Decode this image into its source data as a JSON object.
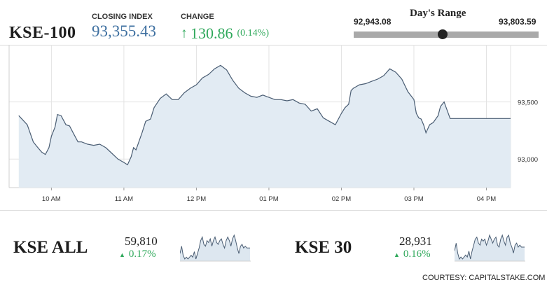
{
  "header": {
    "index_name": "KSE-100",
    "closing_label": "CLOSING INDEX",
    "closing_value": "93,355.43",
    "change_label": "CHANGE",
    "change_arrow": "↑",
    "change_value": "130.86",
    "change_pct": "(0.14%)"
  },
  "range": {
    "title": "Day's Range",
    "low": "92,943.08",
    "high": "93,803.59",
    "low_num": 92943.08,
    "high_num": 93803.59,
    "current_num": 93355.43
  },
  "chart_data": [
    {
      "type": "area",
      "title": "",
      "xlabel": "",
      "ylabel": "",
      "x_ticks": [
        "10 AM",
        "11 AM",
        "12 PM",
        "01 PM",
        "02 PM",
        "03 PM",
        "04 PM"
      ],
      "y_ticks": [
        "93,500",
        "93,000"
      ],
      "ylim": [
        92750,
        94000
      ],
      "grid": true,
      "colors": {
        "line": "#4a5d73",
        "fill": "#e2ebf3",
        "grid": "#e3e3e3"
      },
      "x": [
        "09:33",
        "09:40",
        "09:45",
        "09:48",
        "09:52",
        "09:55",
        "09:58",
        "10:00",
        "10:03",
        "10:05",
        "10:08",
        "10:12",
        "10:15",
        "10:18",
        "10:22",
        "10:25",
        "10:30",
        "10:35",
        "10:40",
        "10:45",
        "10:50",
        "10:55",
        "11:00",
        "11:03",
        "11:06",
        "11:08",
        "11:10",
        "11:12",
        "11:15",
        "11:18",
        "11:22",
        "11:25",
        "11:30",
        "11:35",
        "11:40",
        "11:45",
        "11:50",
        "11:55",
        "12:00",
        "12:05",
        "12:10",
        "12:15",
        "12:20",
        "12:25",
        "12:30",
        "12:35",
        "12:40",
        "12:45",
        "12:50",
        "12:55",
        "13:00",
        "13:05",
        "13:10",
        "13:15",
        "13:20",
        "13:25",
        "13:30",
        "13:35",
        "13:40",
        "13:45",
        "13:50",
        "13:55",
        "14:00",
        "14:03",
        "14:06",
        "14:08",
        "14:10",
        "14:15",
        "14:20",
        "14:25",
        "14:30",
        "14:35",
        "14:40",
        "14:45",
        "14:50",
        "14:55",
        "15:00",
        "15:02",
        "15:04",
        "15:06",
        "15:08",
        "15:10",
        "15:13",
        "15:16",
        "15:20",
        "15:22",
        "15:25",
        "15:30",
        "15:35",
        "15:45",
        "16:00",
        "16:15",
        "16:20"
      ],
      "series": [
        {
          "values": [
            93380,
            93300,
            93150,
            93110,
            93060,
            93040,
            93100,
            93200,
            93280,
            93390,
            93380,
            93300,
            93290,
            93230,
            93150,
            93150,
            93130,
            93120,
            93130,
            93100,
            93050,
            93000,
            92970,
            92950,
            93020,
            93100,
            93080,
            93140,
            93230,
            93330,
            93350,
            93450,
            93530,
            93570,
            93520,
            93520,
            93580,
            93620,
            93650,
            93710,
            93740,
            93790,
            93820,
            93780,
            93690,
            93620,
            93580,
            93550,
            93540,
            93560,
            93540,
            93520,
            93520,
            93510,
            93520,
            93490,
            93480,
            93420,
            93440,
            93360,
            93330,
            93300,
            93400,
            93450,
            93480,
            93600,
            93620,
            93650,
            93660,
            93680,
            93700,
            93730,
            93790,
            93760,
            93700,
            93590,
            93520,
            93400,
            93360,
            93350,
            93300,
            93230,
            93300,
            93320,
            93380,
            93460,
            93500,
            93355,
            93355,
            93355,
            93355,
            93355,
            93355
          ]
        }
      ]
    },
    {
      "type": "area",
      "title": "KSE ALL",
      "value_text": "59,810",
      "change_text": "0.17%",
      "series": [
        {
          "values": [
            5,
            9,
            4,
            2,
            3,
            2,
            3,
            4,
            3,
            6,
            2,
            5,
            8,
            12,
            14,
            10,
            9,
            12,
            11,
            13,
            9,
            12,
            14,
            11,
            10,
            12,
            13,
            10,
            8,
            12,
            14,
            12,
            9,
            13,
            15,
            12,
            8,
            5,
            9,
            10,
            8,
            9,
            8,
            8,
            8
          ]
        }
      ]
    },
    {
      "type": "area",
      "title": "KSE 30",
      "value_text": "28,931",
      "change_text": "0.16%",
      "series": [
        {
          "values": [
            6,
            10,
            5,
            2,
            3,
            2,
            3,
            4,
            3,
            6,
            2,
            6,
            9,
            12,
            13,
            10,
            9,
            12,
            11,
            12,
            9,
            11,
            14,
            12,
            10,
            12,
            13,
            9,
            8,
            12,
            14,
            11,
            9,
            13,
            14,
            10,
            8,
            5,
            9,
            10,
            8,
            9,
            8,
            8,
            8
          ]
        }
      ]
    }
  ],
  "footer": {
    "courtesy": "COURTESY: CAPITALSTAKE.COM"
  }
}
